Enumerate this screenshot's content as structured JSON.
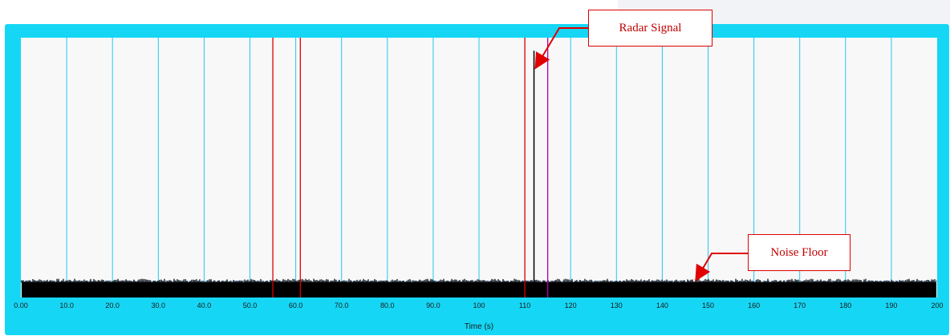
{
  "colors": {
    "frame": "#15d7f5",
    "plot_bg": "#f8f8f8",
    "grid": "#27c6ee",
    "red_cursor": "#e00000",
    "purple_cursor": "#b000b0",
    "signal": "#000000",
    "callout_border": "#e00000",
    "callout_text": "#c00000"
  },
  "chart_data": {
    "type": "line",
    "xlabel": "Time (s)",
    "xlim": [
      0,
      200
    ],
    "xticks": [
      "0.00",
      "10.0",
      "20.0",
      "30.0",
      "40.0",
      "50.0",
      "60.0",
      "70.0",
      "80.0",
      "90.0",
      "100",
      "110",
      "120",
      "130",
      "140",
      "150",
      "160",
      "170",
      "180",
      "190",
      "200"
    ],
    "grid": true,
    "series": [
      {
        "values_note": "",
        "noise_floor_level": 0.03,
        "noise_band": [
          0.0,
          0.06
        ]
      }
    ],
    "radar_spike": {
      "x": 112,
      "peak": 0.95
    },
    "cursors": [
      {
        "x": 55,
        "color": "red"
      },
      {
        "x": 61,
        "color": "red"
      },
      {
        "x": 110,
        "color": "red"
      },
      {
        "x": 115,
        "color": "purple"
      }
    ],
    "annotations": [
      {
        "text": "Radar Signal",
        "points_to_x": 112
      },
      {
        "text": "Noise Floor",
        "points_to_x": 147
      }
    ]
  }
}
